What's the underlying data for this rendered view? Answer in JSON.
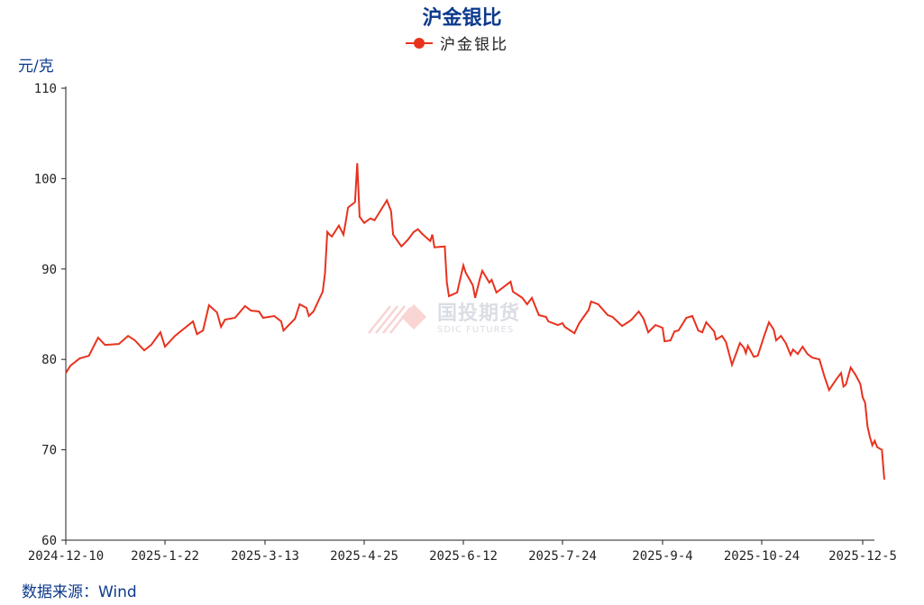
{
  "chart_data": {
    "type": "line",
    "title": "沪金银比",
    "ylabel": "元/克",
    "ylim": [
      60,
      110
    ],
    "yticks": [
      60,
      70,
      80,
      90,
      100,
      110
    ],
    "x_range": [
      "2024-12-10",
      "2025-12-10"
    ],
    "xticks": [
      "2024-12-10",
      "2025-1-22",
      "2025-3-13",
      "2025-4-25",
      "2025-6-12",
      "2025-7-24",
      "2025-9-4",
      "2025-10-24",
      "2025-12-5"
    ],
    "grid": false,
    "legend_position": "top-center",
    "series": [
      {
        "name": "沪金银比",
        "color": "#e8321e",
        "points": [
          [
            "2024-12-10",
            78.5
          ],
          [
            "2024-12-12",
            79.3
          ],
          [
            "2024-12-16",
            80.1
          ],
          [
            "2024-12-20",
            80.4
          ],
          [
            "2024-12-24",
            82.4
          ],
          [
            "2024-12-27",
            81.6
          ],
          [
            "2025-01-02",
            81.7
          ],
          [
            "2025-01-06",
            82.6
          ],
          [
            "2025-01-09",
            82.1
          ],
          [
            "2025-01-13",
            81.0
          ],
          [
            "2025-01-16",
            81.6
          ],
          [
            "2025-01-20",
            83.0
          ],
          [
            "2025-01-22",
            81.4
          ],
          [
            "2025-01-27",
            82.6
          ],
          [
            "2025-02-05",
            84.2
          ],
          [
            "2025-02-07",
            82.8
          ],
          [
            "2025-02-10",
            83.2
          ],
          [
            "2025-02-13",
            86.0
          ],
          [
            "2025-02-17",
            85.2
          ],
          [
            "2025-02-19",
            83.6
          ],
          [
            "2025-02-21",
            84.4
          ],
          [
            "2025-02-26",
            84.6
          ],
          [
            "2025-03-03",
            85.9
          ],
          [
            "2025-03-06",
            85.4
          ],
          [
            "2025-03-10",
            85.3
          ],
          [
            "2025-03-12",
            84.6
          ],
          [
            "2025-03-17",
            84.8
          ],
          [
            "2025-03-20",
            84.2
          ],
          [
            "2025-03-21",
            83.2
          ],
          [
            "2025-03-26",
            84.5
          ],
          [
            "2025-03-28",
            86.1
          ],
          [
            "2025-03-31",
            85.7
          ],
          [
            "2025-04-01",
            84.8
          ],
          [
            "2025-04-03",
            85.3
          ],
          [
            "2025-04-07",
            87.5
          ],
          [
            "2025-04-08",
            89.5
          ],
          [
            "2025-04-09",
            94.1
          ],
          [
            "2025-04-10",
            93.8
          ],
          [
            "2025-04-11",
            93.6
          ],
          [
            "2025-04-14",
            94.8
          ],
          [
            "2025-04-16",
            93.8
          ],
          [
            "2025-04-17",
            95.2
          ],
          [
            "2025-04-18",
            96.8
          ],
          [
            "2025-04-21",
            97.4
          ],
          [
            "2025-04-22",
            101.7
          ],
          [
            "2025-04-23",
            95.8
          ],
          [
            "2025-04-25",
            95.1
          ],
          [
            "2025-04-28",
            95.6
          ],
          [
            "2025-04-30",
            95.4
          ],
          [
            "2025-05-06",
            97.6
          ],
          [
            "2025-05-08",
            96.4
          ],
          [
            "2025-05-09",
            93.8
          ],
          [
            "2025-05-13",
            92.5
          ],
          [
            "2025-05-16",
            93.2
          ],
          [
            "2025-05-19",
            94.1
          ],
          [
            "2025-05-21",
            94.4
          ],
          [
            "2025-05-23",
            93.9
          ],
          [
            "2025-05-27",
            93.1
          ],
          [
            "2025-05-28",
            93.8
          ],
          [
            "2025-05-29",
            92.4
          ],
          [
            "2025-06-03",
            92.5
          ],
          [
            "2025-06-04",
            88.5
          ],
          [
            "2025-06-05",
            87.0
          ],
          [
            "2025-06-09",
            87.4
          ],
          [
            "2025-06-12",
            90.4
          ],
          [
            "2025-06-13",
            89.6
          ],
          [
            "2025-06-16",
            88.2
          ],
          [
            "2025-06-17",
            86.8
          ],
          [
            "2025-06-19",
            88.9
          ],
          [
            "2025-06-20",
            89.8
          ],
          [
            "2025-06-23",
            88.5
          ],
          [
            "2025-06-24",
            88.8
          ],
          [
            "2025-06-26",
            87.4
          ],
          [
            "2025-06-30",
            88.2
          ],
          [
            "2025-07-02",
            88.6
          ],
          [
            "2025-07-03",
            87.5
          ],
          [
            "2025-07-07",
            86.8
          ],
          [
            "2025-07-09",
            86.1
          ],
          [
            "2025-07-11",
            86.8
          ],
          [
            "2025-07-14",
            84.9
          ],
          [
            "2025-07-17",
            84.7
          ],
          [
            "2025-07-18",
            84.2
          ],
          [
            "2025-07-22",
            83.8
          ],
          [
            "2025-07-24",
            84.0
          ],
          [
            "2025-07-25",
            83.6
          ],
          [
            "2025-07-29",
            82.9
          ],
          [
            "2025-07-31",
            84.0
          ],
          [
            "2025-08-04",
            85.5
          ],
          [
            "2025-08-05",
            86.4
          ],
          [
            "2025-08-08",
            86.1
          ],
          [
            "2025-08-12",
            84.9
          ],
          [
            "2025-08-14",
            84.7
          ],
          [
            "2025-08-18",
            83.7
          ],
          [
            "2025-08-21",
            84.2
          ],
          [
            "2025-08-22",
            84.4
          ],
          [
            "2025-08-25",
            85.3
          ],
          [
            "2025-08-27",
            84.5
          ],
          [
            "2025-08-29",
            83.0
          ],
          [
            "2025-09-01",
            83.8
          ],
          [
            "2025-09-04",
            83.5
          ],
          [
            "2025-09-05",
            82.0
          ],
          [
            "2025-09-08",
            82.1
          ],
          [
            "2025-09-10",
            83.1
          ],
          [
            "2025-09-12",
            83.2
          ],
          [
            "2025-09-16",
            84.6
          ],
          [
            "2025-09-19",
            84.8
          ],
          [
            "2025-09-22",
            83.2
          ],
          [
            "2025-09-24",
            83.0
          ],
          [
            "2025-09-26",
            84.1
          ],
          [
            "2025-09-30",
            83.1
          ],
          [
            "2025-10-01",
            82.2
          ],
          [
            "2025-10-04",
            82.6
          ],
          [
            "2025-10-06",
            81.9
          ],
          [
            "2025-10-09",
            79.4
          ],
          [
            "2025-10-13",
            81.8
          ],
          [
            "2025-10-15",
            81.3
          ],
          [
            "2025-10-16",
            80.7
          ],
          [
            "2025-10-17",
            81.5
          ],
          [
            "2025-10-20",
            80.3
          ],
          [
            "2025-10-22",
            80.4
          ],
          [
            "2025-10-25",
            82.6
          ],
          [
            "2025-10-27",
            84.1
          ],
          [
            "2025-10-29",
            83.3
          ],
          [
            "2025-10-30",
            82.1
          ],
          [
            "2025-11-01",
            82.6
          ],
          [
            "2025-11-03",
            81.8
          ],
          [
            "2025-11-05",
            80.5
          ],
          [
            "2025-11-06",
            81.1
          ],
          [
            "2025-11-08",
            80.6
          ],
          [
            "2025-11-10",
            81.4
          ],
          [
            "2025-11-12",
            80.6
          ],
          [
            "2025-11-14",
            80.2
          ],
          [
            "2025-11-17",
            80.0
          ],
          [
            "2025-11-19",
            78.2
          ],
          [
            "2025-11-21",
            76.6
          ],
          [
            "2025-11-24",
            77.8
          ],
          [
            "2025-11-26",
            78.5
          ],
          [
            "2025-11-27",
            77.0
          ],
          [
            "2025-11-28",
            77.2
          ],
          [
            "2025-11-30",
            79.1
          ],
          [
            "2025-12-02",
            78.3
          ],
          [
            "2025-12-04",
            77.3
          ],
          [
            "2025-12-05",
            75.8
          ],
          [
            "2025-12-06",
            75.2
          ],
          [
            "2025-12-07",
            72.6
          ],
          [
            "2025-12-08",
            71.4
          ],
          [
            "2025-12-09",
            70.5
          ],
          [
            "2025-12-10",
            71.0
          ],
          [
            "2025-12-11",
            70.3
          ],
          [
            "2025-12-13",
            70.0
          ],
          [
            "2025-12-14",
            66.7
          ]
        ]
      }
    ]
  },
  "title": "沪金银比",
  "legend_label": "沪金银比",
  "unit_label": "元/克",
  "source": "数据来源：Wind",
  "watermark": {
    "cn": "国投期货",
    "en": "SDIC FUTURES"
  },
  "colors": {
    "title": "#0d3a8c",
    "line": "#e8321e"
  }
}
